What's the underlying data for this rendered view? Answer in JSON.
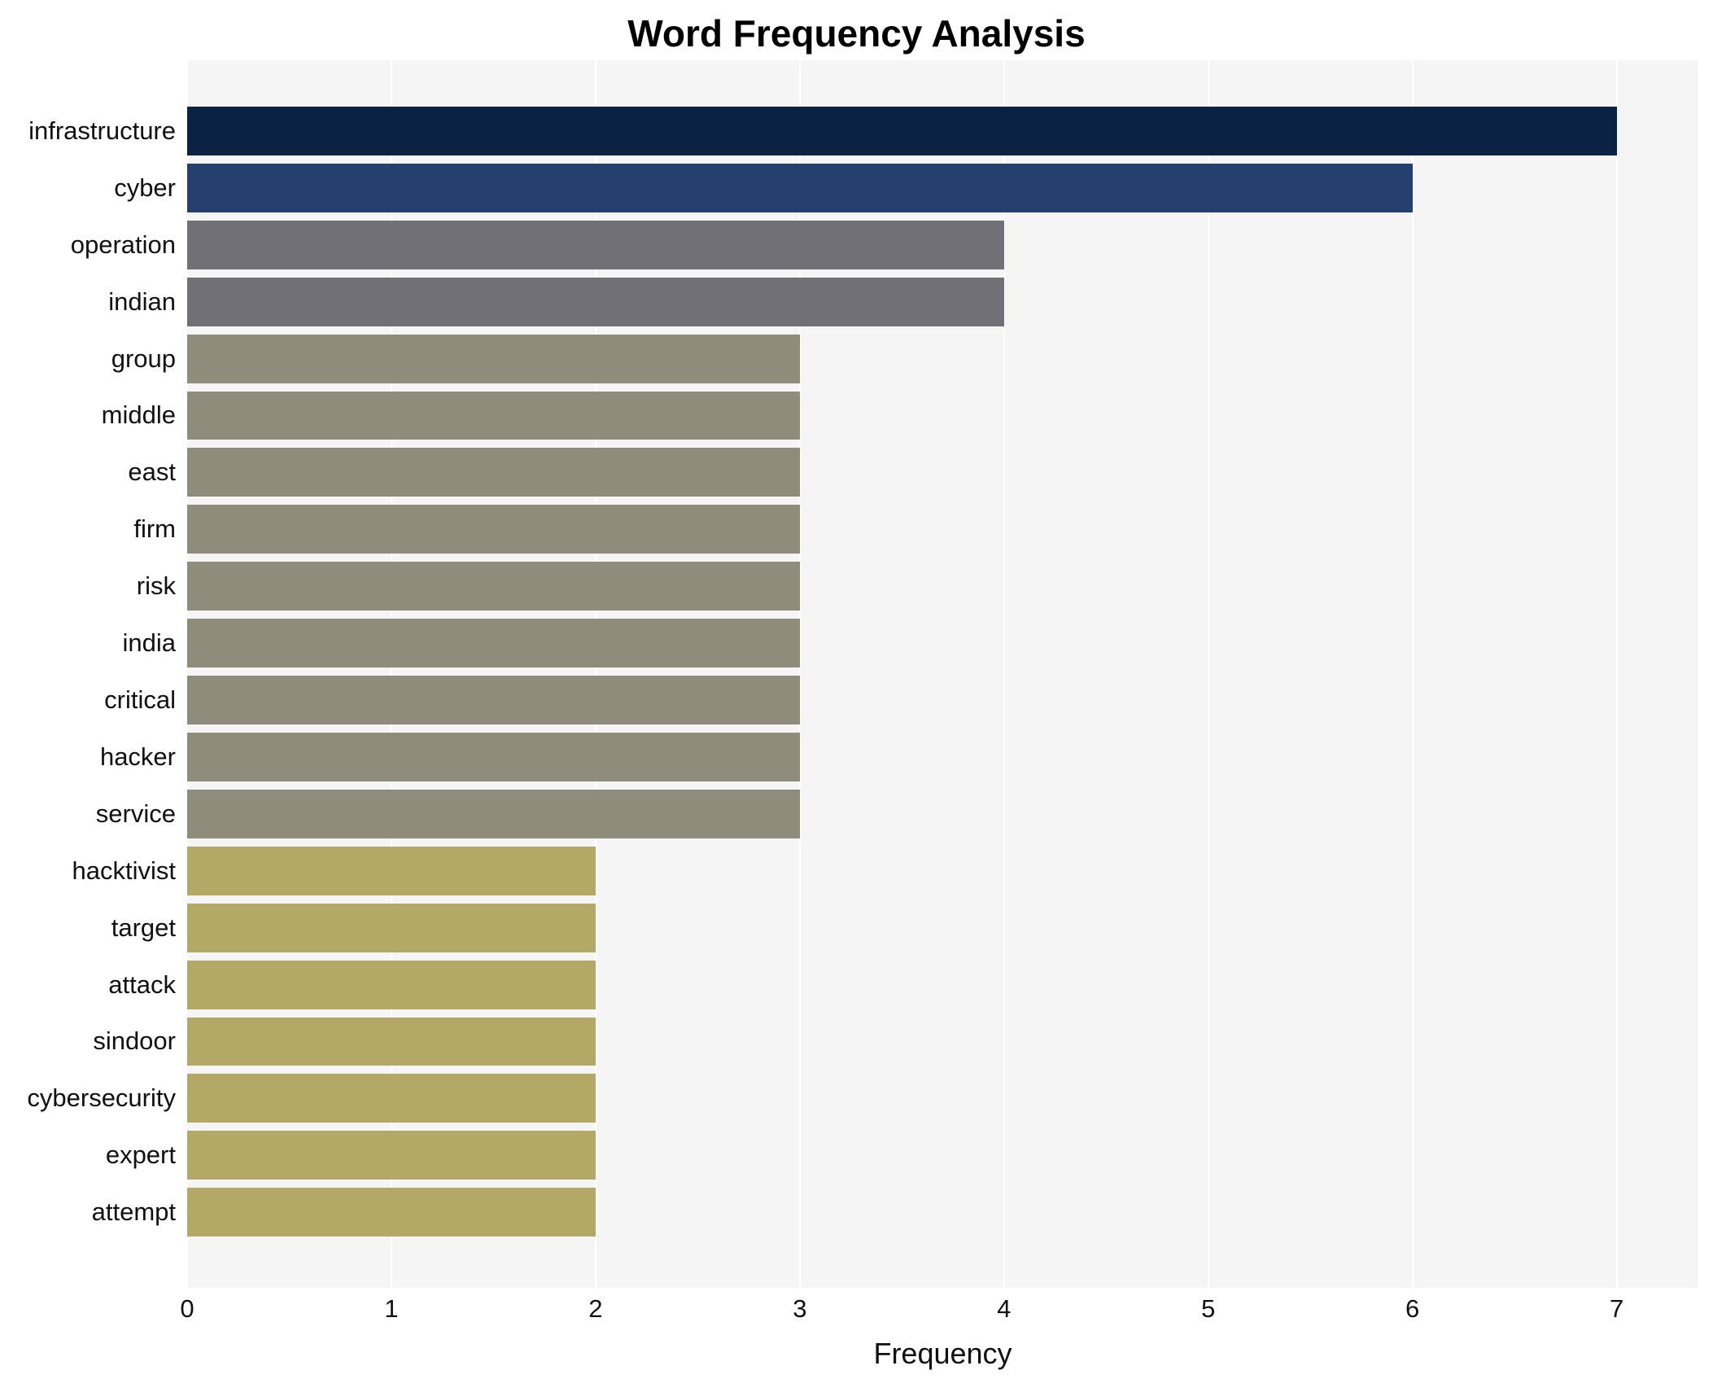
{
  "chart_data": {
    "type": "bar",
    "orientation": "horizontal",
    "title": "Word Frequency Analysis",
    "xlabel": "Frequency",
    "ylabel": "",
    "xlim": [
      0,
      7.4
    ],
    "xticks": [
      0,
      1,
      2,
      3,
      4,
      5,
      6,
      7
    ],
    "grid": true,
    "legend": "none",
    "plot_background": "#f5f5f6",
    "gridline_color": "#ffffff",
    "categories": [
      "infrastructure",
      "cyber",
      "operation",
      "indian",
      "group",
      "middle",
      "east",
      "firm",
      "risk",
      "india",
      "critical",
      "hacker",
      "service",
      "hacktivist",
      "target",
      "attack",
      "sindoor",
      "cybersecurity",
      "expert",
      "attempt"
    ],
    "values": [
      7,
      6,
      4,
      4,
      3,
      3,
      3,
      3,
      3,
      3,
      3,
      3,
      3,
      2,
      2,
      2,
      2,
      2,
      2,
      2
    ],
    "bar_colors": [
      "#0c2244",
      "#253f6e",
      "#717077",
      "#717077",
      "#908c7b",
      "#908c7b",
      "#908c7b",
      "#908c7b",
      "#908c7b",
      "#908c7b",
      "#908c7b",
      "#908c7b",
      "#908c7b",
      "#b3a866",
      "#b3a866",
      "#b3a866",
      "#b3a866",
      "#b3a866",
      "#b3a866",
      "#b3a866"
    ]
  }
}
